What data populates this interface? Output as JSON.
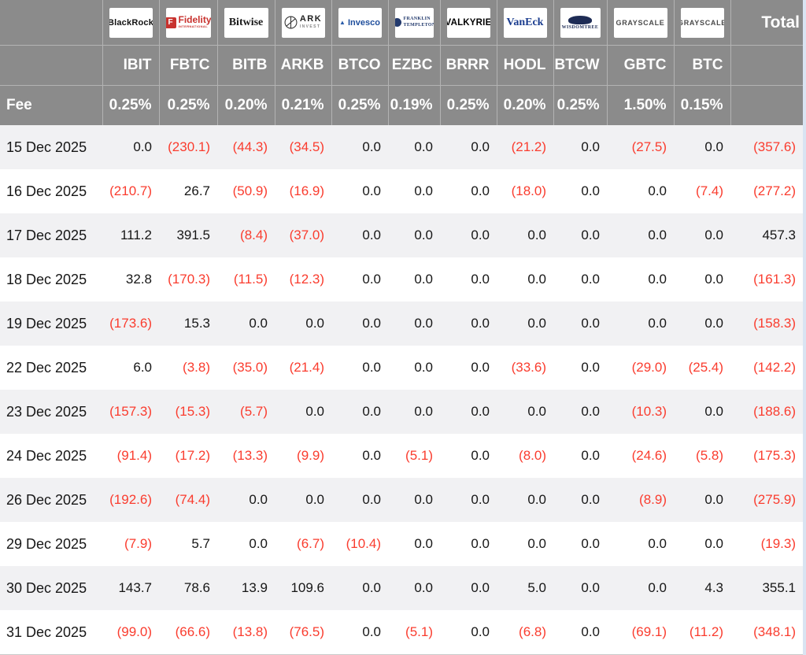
{
  "chart_data": {
    "type": "table",
    "fee_label": "Fee",
    "total_label": "Total",
    "providers": [
      {
        "id": "blackrock",
        "name": "BlackRock",
        "ticker": "IBIT",
        "fee": "0.25%",
        "logo": {
          "text": "BlackRock"
        }
      },
      {
        "id": "fidelity",
        "name": "Fidelity",
        "ticker": "FBTC",
        "fee": "0.25%",
        "logo": {
          "text": "Fidelity",
          "subtext": "INTERNATIONAL",
          "monogram": "F"
        }
      },
      {
        "id": "bitwise",
        "name": "Bitwise",
        "ticker": "BITB",
        "fee": "0.20%",
        "logo": {
          "text": "Bitwise"
        }
      },
      {
        "id": "ark",
        "name": "ARK Invest",
        "ticker": "ARKB",
        "fee": "0.21%",
        "logo": {
          "text": "ARK",
          "subtext": "INVEST"
        }
      },
      {
        "id": "invesco",
        "name": "Invesco",
        "ticker": "BTCO",
        "fee": "0.25%",
        "logo": {
          "text": "Invesco"
        }
      },
      {
        "id": "franklin",
        "name": "Franklin Templeton",
        "ticker": "EZBC",
        "fee": "0.19%",
        "logo": {
          "text": "FRANKLIN",
          "subtext": "TEMPLETON"
        }
      },
      {
        "id": "valkyrie",
        "name": "Valkyrie",
        "ticker": "BRRR",
        "fee": "0.25%",
        "logo": {
          "text": "VALKYRIE"
        }
      },
      {
        "id": "vaneck",
        "name": "VanEck",
        "ticker": "HODL",
        "fee": "0.20%",
        "logo": {
          "text": "VanEck"
        }
      },
      {
        "id": "wisdomtree",
        "name": "WisdomTree",
        "ticker": "BTCW",
        "fee": "0.25%",
        "logo": {
          "text": "WISDOMTREE"
        }
      },
      {
        "id": "grayscale",
        "name": "Grayscale",
        "ticker": "GBTC",
        "fee": "1.50%",
        "logo": {
          "text": "GRAYSCALE"
        }
      },
      {
        "id": "grayscale-btc",
        "name": "Grayscale",
        "ticker": "BTC",
        "fee": "0.15%",
        "logo": {
          "text": "GRAYSCALE"
        }
      }
    ],
    "rows": [
      {
        "date": "15 Dec 2025",
        "values": [
          "0.0",
          "(230.1)",
          "(44.3)",
          "(34.5)",
          "0.0",
          "0.0",
          "0.0",
          "(21.2)",
          "0.0",
          "(27.5)",
          "0.0"
        ],
        "total": "(357.6)"
      },
      {
        "date": "16 Dec 2025",
        "values": [
          "(210.7)",
          "26.7",
          "(50.9)",
          "(16.9)",
          "0.0",
          "0.0",
          "0.0",
          "(18.0)",
          "0.0",
          "0.0",
          "(7.4)"
        ],
        "total": "(277.2)"
      },
      {
        "date": "17 Dec 2025",
        "values": [
          "111.2",
          "391.5",
          "(8.4)",
          "(37.0)",
          "0.0",
          "0.0",
          "0.0",
          "0.0",
          "0.0",
          "0.0",
          "0.0"
        ],
        "total": "457.3"
      },
      {
        "date": "18 Dec 2025",
        "values": [
          "32.8",
          "(170.3)",
          "(11.5)",
          "(12.3)",
          "0.0",
          "0.0",
          "0.0",
          "0.0",
          "0.0",
          "0.0",
          "0.0"
        ],
        "total": "(161.3)"
      },
      {
        "date": "19 Dec 2025",
        "values": [
          "(173.6)",
          "15.3",
          "0.0",
          "0.0",
          "0.0",
          "0.0",
          "0.0",
          "0.0",
          "0.0",
          "0.0",
          "0.0"
        ],
        "total": "(158.3)"
      },
      {
        "date": "22 Dec 2025",
        "values": [
          "6.0",
          "(3.8)",
          "(35.0)",
          "(21.4)",
          "0.0",
          "0.0",
          "0.0",
          "(33.6)",
          "0.0",
          "(29.0)",
          "(25.4)"
        ],
        "total": "(142.2)"
      },
      {
        "date": "23 Dec 2025",
        "values": [
          "(157.3)",
          "(15.3)",
          "(5.7)",
          "0.0",
          "0.0",
          "0.0",
          "0.0",
          "0.0",
          "0.0",
          "(10.3)",
          "0.0"
        ],
        "total": "(188.6)"
      },
      {
        "date": "24 Dec 2025",
        "values": [
          "(91.4)",
          "(17.2)",
          "(13.3)",
          "(9.9)",
          "0.0",
          "(5.1)",
          "0.0",
          "(8.0)",
          "0.0",
          "(24.6)",
          "(5.8)"
        ],
        "total": "(175.3)"
      },
      {
        "date": "26 Dec 2025",
        "values": [
          "(192.6)",
          "(74.4)",
          "0.0",
          "0.0",
          "0.0",
          "0.0",
          "0.0",
          "0.0",
          "0.0",
          "(8.9)",
          "0.0"
        ],
        "total": "(275.9)"
      },
      {
        "date": "29 Dec 2025",
        "values": [
          "(7.9)",
          "5.7",
          "0.0",
          "(6.7)",
          "(10.4)",
          "0.0",
          "0.0",
          "0.0",
          "0.0",
          "0.0",
          "0.0"
        ],
        "total": "(19.3)"
      },
      {
        "date": "30 Dec 2025",
        "values": [
          "143.7",
          "78.6",
          "13.9",
          "109.6",
          "0.0",
          "0.0",
          "0.0",
          "5.0",
          "0.0",
          "0.0",
          "4.3"
        ],
        "total": "355.1"
      },
      {
        "date": "31 Dec 2025",
        "values": [
          "(99.0)",
          "(66.6)",
          "(13.8)",
          "(76.5)",
          "0.0",
          "(5.1)",
          "0.0",
          "(6.8)",
          "0.0",
          "(69.1)",
          "(11.2)"
        ],
        "total": "(348.1)"
      }
    ]
  },
  "colors": {
    "header_bg": "#8b8b8b",
    "negative": "#fa3c2e",
    "row_alt": "#f1f1f3",
    "page_bg": "#d9e4f2"
  }
}
